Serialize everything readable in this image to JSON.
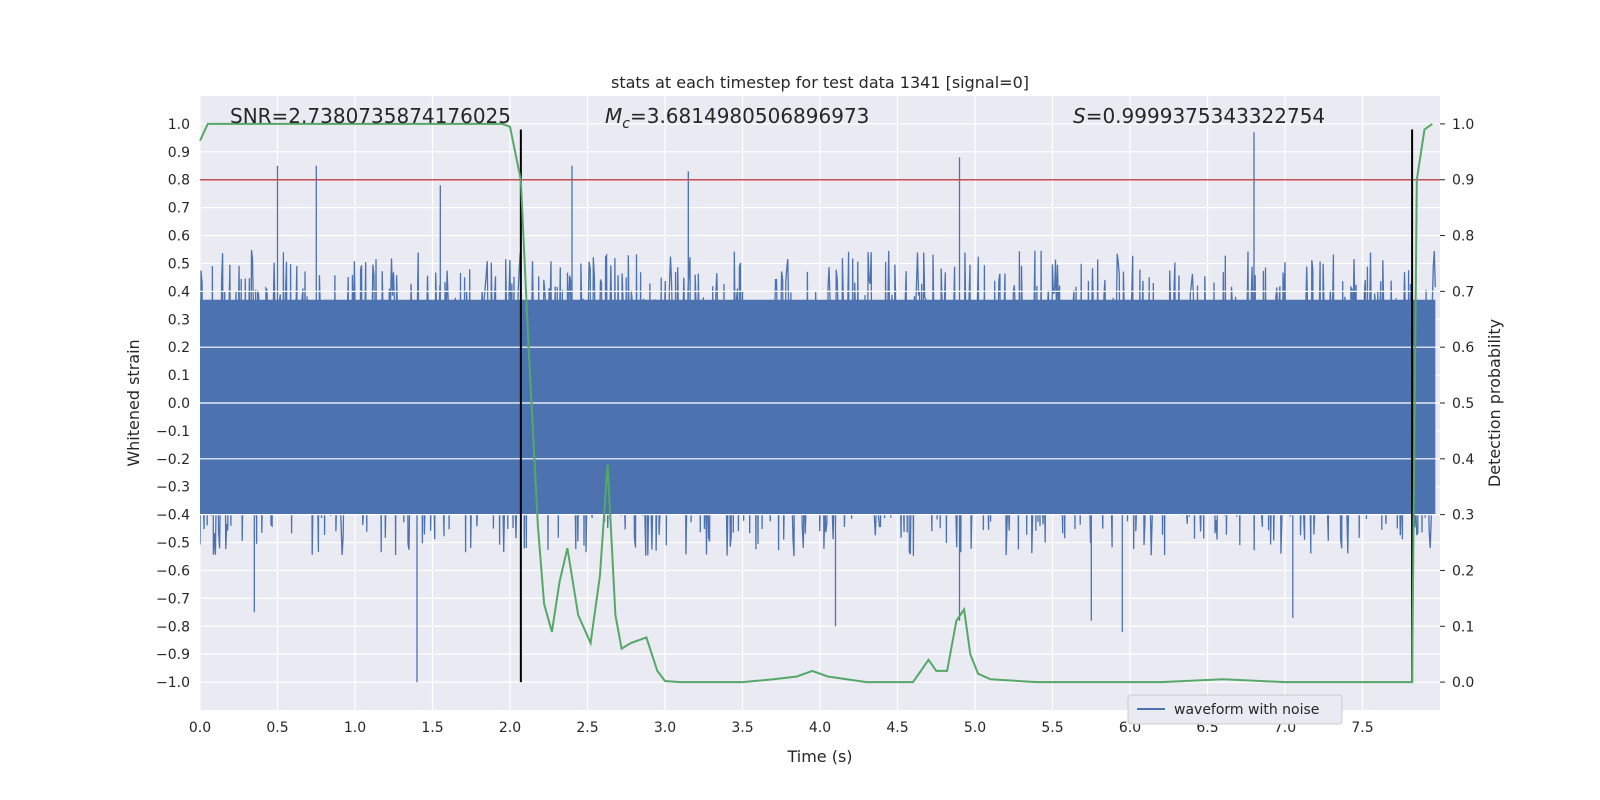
{
  "chart_data": {
    "type": "line",
    "title": "stats at each timestep for test data 1341 [signal=0]",
    "xlabel": "Time (s)",
    "ylabel_left": "Whitened strain",
    "ylabel_right": "Detection probability",
    "xlim": [
      0.0,
      8.0
    ],
    "ylim_left": [
      -1.1,
      1.1
    ],
    "ylim_right": [
      -0.05,
      1.05
    ],
    "xticks": [
      "0.0",
      "0.5",
      "1.0",
      "1.5",
      "2.0",
      "2.5",
      "3.0",
      "3.5",
      "4.0",
      "4.5",
      "5.0",
      "5.5",
      "6.0",
      "6.5",
      "7.0",
      "7.5"
    ],
    "yticks_left": [
      "1.0",
      "0.9",
      "0.8",
      "0.7",
      "0.6",
      "0.5",
      "0.4",
      "0.3",
      "0.2",
      "0.1",
      "0.0",
      "-0.1",
      "-0.2",
      "-0.3",
      "-0.4",
      "-0.5",
      "-0.6",
      "-0.7",
      "-0.8",
      "-0.9",
      "-1.0"
    ],
    "yticks_right": [
      "1.0",
      "0.9",
      "0.8",
      "0.7",
      "0.6",
      "0.5",
      "0.4",
      "0.3",
      "0.2",
      "0.1",
      "0.0"
    ],
    "grid": true,
    "legend": {
      "position": "lower-right",
      "label": "waveform with noise"
    },
    "annotations": {
      "snr": "SNR=2.7380735874176025",
      "mc_symbol": "M",
      "mc_sub": "c",
      "mc_value": "=3.6814980506896973",
      "s_symbol": "S",
      "s_value": "=0.9999375343322754"
    },
    "colors": {
      "waveform": "#4c72b0",
      "probability": "#55a868",
      "threshold": "#c44e52",
      "vlines": "#000000",
      "background": "#eaeaf2"
    },
    "waveform_envelope": {
      "typical_peak": 0.55,
      "max_upper": 0.97,
      "min_lower": -1.0,
      "notable_spikes": [
        {
          "x": 0.5,
          "y": 0.85
        },
        {
          "x": 0.75,
          "y": 0.85
        },
        {
          "x": 1.55,
          "y": 0.78
        },
        {
          "x": 2.4,
          "y": 0.85
        },
        {
          "x": 3.15,
          "y": 0.83
        },
        {
          "x": 4.9,
          "y": 0.88
        },
        {
          "x": 6.8,
          "y": 0.97
        },
        {
          "x": 1.4,
          "y": -1.0
        },
        {
          "x": 0.35,
          "y": -0.75
        },
        {
          "x": 4.1,
          "y": -0.8
        },
        {
          "x": 4.9,
          "y": -0.78
        },
        {
          "x": 5.95,
          "y": -0.82
        },
        {
          "x": 5.75,
          "y": -0.78
        },
        {
          "x": 7.05,
          "y": -0.77
        }
      ]
    },
    "threshold_line": {
      "right_axis_value": 0.9
    },
    "vertical_lines": {
      "x": [
        2.07,
        7.82
      ],
      "y_range_right": [
        0.0,
        0.99
      ]
    },
    "series": [
      {
        "name": "Detection probability",
        "x": [
          0.0,
          0.05,
          0.1,
          0.2,
          0.4,
          0.6,
          0.8,
          1.0,
          1.2,
          1.4,
          1.6,
          1.8,
          1.95,
          2.0,
          2.07,
          2.12,
          2.18,
          2.22,
          2.27,
          2.32,
          2.37,
          2.44,
          2.52,
          2.58,
          2.63,
          2.68,
          2.72,
          2.78,
          2.88,
          2.95,
          3.0,
          3.1,
          3.3,
          3.5,
          3.7,
          3.85,
          3.95,
          4.05,
          4.3,
          4.6,
          4.65,
          4.7,
          4.75,
          4.82,
          4.88,
          4.93,
          4.97,
          5.02,
          5.1,
          5.4,
          5.8,
          6.2,
          6.6,
          7.0,
          7.4,
          7.82,
          7.85,
          7.9,
          7.95
        ],
        "y": [
          0.97,
          1.0,
          1.0,
          1.0,
          1.0,
          1.0,
          1.0,
          1.0,
          1.0,
          1.0,
          1.0,
          1.0,
          1.0,
          0.995,
          0.9,
          0.6,
          0.28,
          0.14,
          0.09,
          0.18,
          0.24,
          0.12,
          0.07,
          0.19,
          0.39,
          0.12,
          0.06,
          0.07,
          0.08,
          0.02,
          0.002,
          0.0,
          0.0,
          0.0,
          0.005,
          0.01,
          0.02,
          0.01,
          0.0,
          0.0,
          0.02,
          0.04,
          0.02,
          0.02,
          0.11,
          0.13,
          0.05,
          0.015,
          0.005,
          0.0,
          0.0,
          0.0,
          0.005,
          0.0,
          0.0,
          0.0,
          0.9,
          0.99,
          1.0
        ]
      }
    ]
  }
}
